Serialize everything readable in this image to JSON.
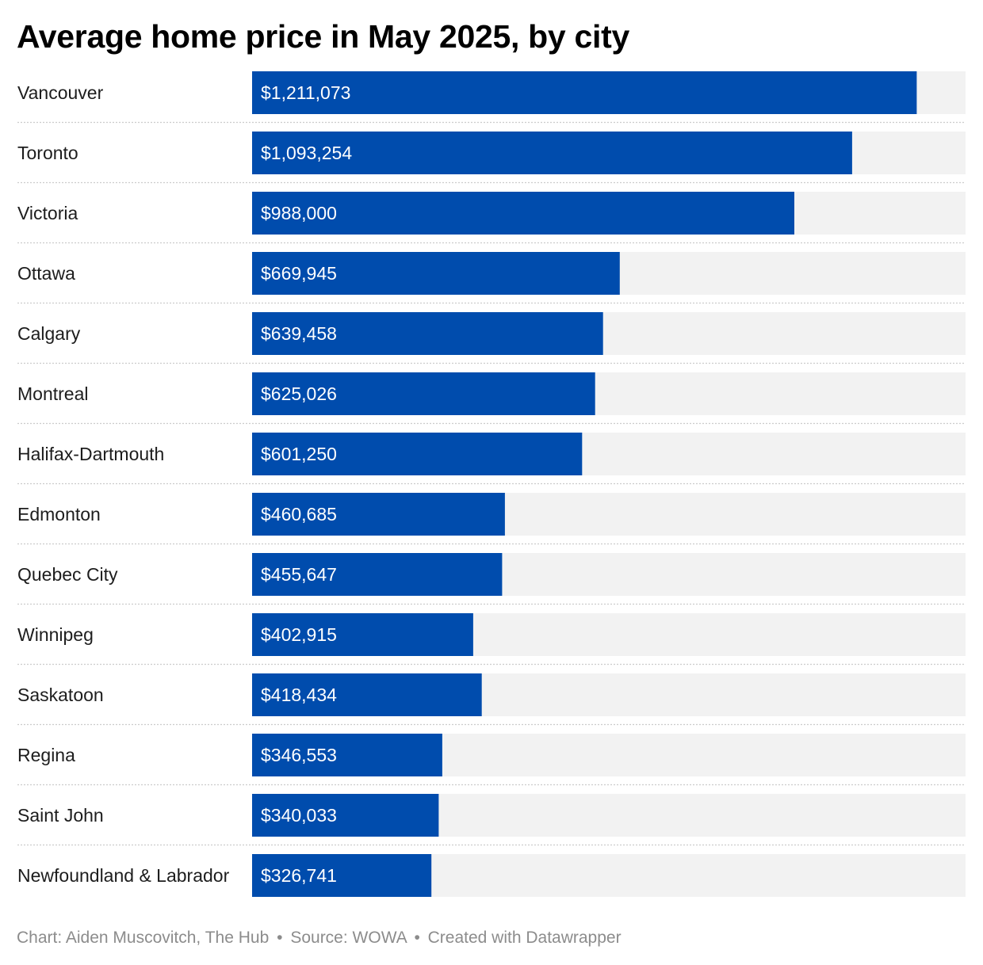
{
  "chart_data": {
    "type": "bar",
    "orientation": "horizontal",
    "title": "Average home price in May 2025, by city",
    "categories": [
      "Vancouver",
      "Toronto",
      "Victoria",
      "Ottawa",
      "Calgary",
      "Montreal",
      "Halifax-Dartmouth",
      "Edmonton",
      "Quebec City",
      "Winnipeg",
      "Saskatoon",
      "Regina",
      "Saint John",
      "Newfoundland & Labrador"
    ],
    "values": [
      1211073,
      1093254,
      988000,
      669945,
      639458,
      625026,
      601250,
      460685,
      455647,
      402915,
      418434,
      346553,
      340033,
      326741
    ],
    "value_labels": [
      "$1,211,073",
      "$1,093,254",
      "$988,000",
      "$669,945",
      "$639,458",
      "$625,026",
      "$601,250",
      "$460,685",
      "$455,647",
      "$402,915",
      "$418,434",
      "$346,553",
      "$340,033",
      "$326,741"
    ],
    "xlim": [
      0,
      1300000
    ],
    "grid": false,
    "legend": "none",
    "colors": {
      "bar": "#004cad",
      "track": "#f2f2f2",
      "divider": "#cccccc"
    }
  },
  "footer": {
    "chart_credit": "Chart: Aiden Muscovitch, The Hub",
    "separator": "•",
    "source": "Source: WOWA",
    "tool": "Created with Datawrapper"
  }
}
